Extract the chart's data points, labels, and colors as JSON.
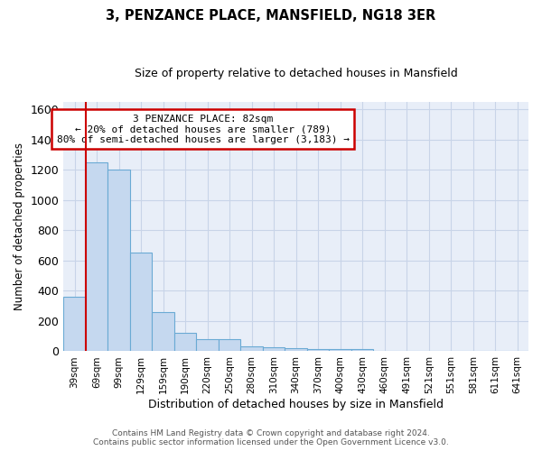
{
  "title": "3, PENZANCE PLACE, MANSFIELD, NG18 3ER",
  "subtitle": "Size of property relative to detached houses in Mansfield",
  "xlabel": "Distribution of detached houses by size in Mansfield",
  "ylabel": "Number of detached properties",
  "footer_line1": "Contains HM Land Registry data © Crown copyright and database right 2024.",
  "footer_line2": "Contains public sector information licensed under the Open Government Licence v3.0.",
  "bar_color": "#c5d8ef",
  "bar_edge_color": "#6aaad4",
  "annotation_box_color": "#ffffff",
  "annotation_border_color": "#cc0000",
  "red_line_color": "#cc0000",
  "grid_color": "#c8d4e8",
  "background_color": "#e8eef8",
  "categories": [
    "39sqm",
    "69sqm",
    "99sqm",
    "129sqm",
    "159sqm",
    "190sqm",
    "220sqm",
    "250sqm",
    "280sqm",
    "310sqm",
    "340sqm",
    "370sqm",
    "400sqm",
    "430sqm",
    "460sqm",
    "491sqm",
    "521sqm",
    "551sqm",
    "581sqm",
    "611sqm",
    "641sqm"
  ],
  "values": [
    360,
    1250,
    1200,
    650,
    260,
    120,
    80,
    80,
    35,
    25,
    20,
    15,
    15,
    15,
    5,
    5,
    0,
    0,
    0,
    0,
    0
  ],
  "ylim": [
    0,
    1650
  ],
  "yticks": [
    0,
    200,
    400,
    600,
    800,
    1000,
    1200,
    1400,
    1600
  ],
  "annotation_line1": "3 PENZANCE PLACE: 82sqm",
  "annotation_line2": "← 20% of detached houses are smaller (789)",
  "annotation_line3": "80% of semi-detached houses are larger (3,183) →",
  "red_line_x": 0.5
}
